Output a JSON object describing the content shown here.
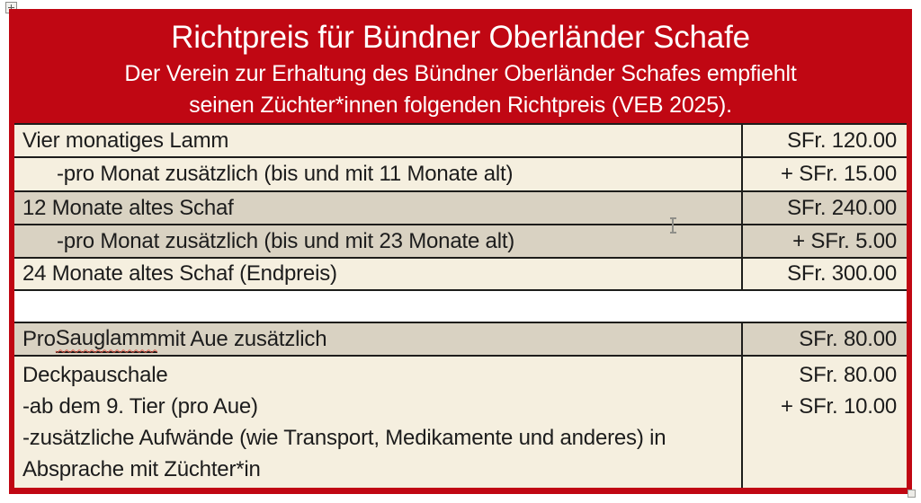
{
  "header": {
    "title": "Richtpreis für Bündner Oberländer Schafe",
    "subtitle_line1": "Der Verein zur Erhaltung des Bündner Oberländer Schafes empfiehlt",
    "subtitle_line2": "seinen Züchter*innen folgenden Richtpreis (VEB 2025)."
  },
  "table": {
    "currency": "SFr.",
    "rows": [
      {
        "label": "Vier monatiges Lamm",
        "price": "SFr. 120.00"
      },
      {
        "label": "-pro Monat zusätzlich (bis und mit 11 Monate alt)",
        "price": "+ SFr. 15.00"
      },
      {
        "label": "12 Monate altes Schaf",
        "price": "SFr. 240.00"
      },
      {
        "label": "-pro Monat zusätzlich (bis und mit 23 Monate alt)",
        "price": "+ SFr. 5.00"
      },
      {
        "label": "24 Monate altes Schaf (Endpreis)",
        "price": "SFr. 300.00"
      },
      {
        "label": "",
        "price": ""
      },
      {
        "label_prefix": "Pro ",
        "label_underlined": "Sauglamm",
        "label_suffix": " mit Aue zusätzlich",
        "price": "SFr. 80.00"
      },
      {
        "line1": "Deckpauschale",
        "line2": "-ab dem 9. Tier (pro Aue)",
        "line3": "-zusätzliche Aufwände (wie Transport, Medikamente und anderes) in Absprache mit Züchter*in",
        "price1": "SFr. 80.00",
        "price2": "+ SFr. 10.00"
      }
    ]
  },
  "icons": {
    "table_move_handle": "move-cross-icon",
    "table_resize_handle": "resize-square-icon",
    "text_cursor": "i-beam-cursor-icon"
  },
  "colors": {
    "header_red": "#c00713",
    "row_cream": "#f5efdf",
    "row_beige": "#d9d2c2",
    "grid_line": "#1d1d1b",
    "header_text": "#ffffff",
    "body_text": "#1c1c1c"
  }
}
